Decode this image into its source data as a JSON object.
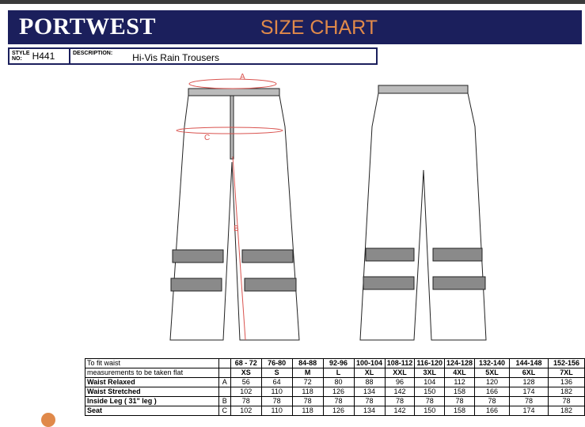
{
  "header": {
    "brand": "PORTWEST",
    "title": "SIZE CHART"
  },
  "info": {
    "style_label_1": "STYLE",
    "style_label_2": "NO:",
    "style_no": "H441",
    "description_label": "DESCRIPTION:",
    "description": "Hi-Vis Rain Trousers"
  },
  "drawing": {
    "labels": [
      "A",
      "B",
      "C"
    ]
  },
  "table": {
    "waist_row": {
      "label": "To fit waist",
      "values": [
        "68 - 72",
        "76-80",
        "84-88",
        "92-96",
        "100-104",
        "108-112",
        "116-120",
        "124-128",
        "132-140",
        "144-148",
        "152-156"
      ]
    },
    "size_row": {
      "label": "measurements to be taken flat",
      "values": [
        "XS",
        "S",
        "M",
        "L",
        "XL",
        "XXL",
        "3XL",
        "4XL",
        "5XL",
        "6XL",
        "7XL"
      ]
    },
    "rows": [
      {
        "label": "Waist Relaxed",
        "letter": "A",
        "values": [
          "56",
          "64",
          "72",
          "80",
          "88",
          "96",
          "104",
          "112",
          "120",
          "128",
          "136"
        ]
      },
      {
        "label": "Waist Stretched",
        "letter": "",
        "values": [
          "102",
          "110",
          "118",
          "126",
          "134",
          "142",
          "150",
          "158",
          "166",
          "174",
          "182"
        ]
      },
      {
        "label": "Inside Leg ( 31\" leg )",
        "letter": "B",
        "values": [
          "78",
          "78",
          "78",
          "78",
          "78",
          "78",
          "78",
          "78",
          "78",
          "78",
          "78"
        ]
      },
      {
        "label": "Seat",
        "letter": "C",
        "values": [
          "102",
          "110",
          "118",
          "126",
          "134",
          "142",
          "150",
          "158",
          "166",
          "174",
          "182"
        ]
      }
    ]
  },
  "colors": {
    "brand": "#1b1f5c",
    "accent": "#e0894a",
    "measure": "#d9534f"
  }
}
